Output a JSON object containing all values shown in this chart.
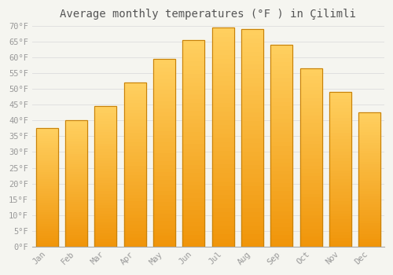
{
  "title": "Average monthly temperatures (°F ) in Çilimli",
  "months": [
    "Jan",
    "Feb",
    "Mar",
    "Apr",
    "May",
    "Jun",
    "Jul",
    "Aug",
    "Sep",
    "Oct",
    "Nov",
    "Dec"
  ],
  "values": [
    37.5,
    40.0,
    44.5,
    52.0,
    59.5,
    65.5,
    69.5,
    69.0,
    64.0,
    56.5,
    49.0,
    42.5
  ],
  "ylim": [
    0,
    70
  ],
  "yticks": [
    0,
    5,
    10,
    15,
    20,
    25,
    30,
    35,
    40,
    45,
    50,
    55,
    60,
    65,
    70
  ],
  "bar_color_top": "#FFD060",
  "bar_color_bottom": "#F0950A",
  "bar_edge_color": "#C8820A",
  "background_color": "#F5F5F0",
  "plot_bg_color": "#F5F5F0",
  "grid_color": "#E0E0E0",
  "title_fontsize": 10,
  "tick_fontsize": 7.5,
  "tick_color": "#999999",
  "title_color": "#555555",
  "font_family": "monospace",
  "bar_width": 0.75
}
